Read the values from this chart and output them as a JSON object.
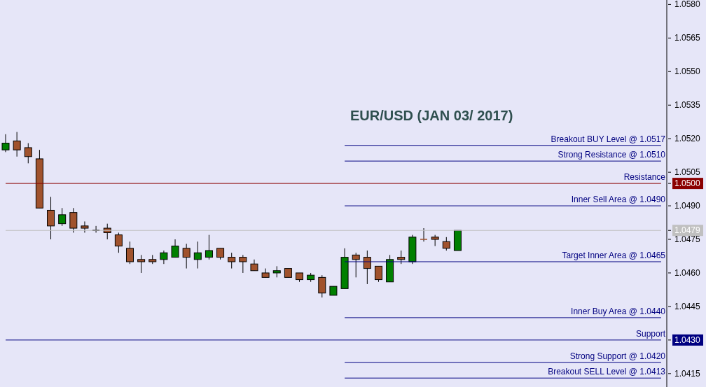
{
  "chart_data": {
    "type": "candlestick",
    "title": "EUR/USD (JAN 03/ 2017)",
    "categories": [
      null,
      null,
      null,
      null,
      null,
      null,
      null,
      null,
      null,
      null,
      null,
      null,
      null,
      null,
      null,
      null,
      null,
      null,
      null,
      null,
      null,
      null,
      null,
      null,
      null,
      null,
      null,
      null,
      null,
      null,
      null,
      null,
      null,
      null,
      null,
      null,
      null,
      null,
      null,
      null,
      null,
      null,
      null,
      null,
      null,
      null,
      null,
      null,
      null,
      null,
      null,
      null,
      null,
      null,
      null,
      null,
      null,
      null,
      null
    ],
    "ohlc": [
      [
        1.0515,
        1.0522,
        1.0514,
        1.0518
      ],
      [
        1.0519,
        1.0523,
        1.0512,
        1.0515
      ],
      [
        1.0516,
        1.0518,
        1.0509,
        1.0512
      ],
      [
        1.0511,
        1.0515,
        1.0489,
        1.0489
      ],
      [
        1.0488,
        1.0494,
        1.0475,
        1.0481
      ],
      [
        1.0482,
        1.0489,
        1.0481,
        1.0486
      ],
      [
        1.0487,
        1.0489,
        1.0478,
        1.048
      ],
      [
        1.0481,
        1.0483,
        1.0478,
        1.048
      ],
      [
        1.0479,
        1.0481,
        1.0478,
        1.0479
      ],
      [
        1.048,
        1.0482,
        1.0475,
        1.0478
      ],
      [
        1.0477,
        1.0478,
        1.0469,
        1.0472
      ],
      [
        1.0471,
        1.0474,
        1.0464,
        1.0465
      ],
      [
        1.0466,
        1.0468,
        1.046,
        1.0465
      ],
      [
        1.0466,
        1.0468,
        1.0464,
        1.0465
      ],
      [
        1.0466,
        1.047,
        1.0464,
        1.0469
      ],
      [
        1.0467,
        1.0475,
        1.0467,
        1.0472
      ],
      [
        1.0471,
        1.0473,
        1.0462,
        1.0467
      ],
      [
        1.0466,
        1.0474,
        1.0462,
        1.0469
      ],
      [
        1.0467,
        1.0477,
        1.0466,
        1.047
      ],
      [
        1.0471,
        1.0471,
        1.0466,
        1.0467
      ],
      [
        1.0467,
        1.0469,
        1.0462,
        1.0465
      ],
      [
        1.0467,
        1.0468,
        1.046,
        1.0465
      ],
      [
        1.0464,
        1.0466,
        1.0461,
        1.0461
      ],
      [
        1.046,
        1.0462,
        1.0458,
        1.0458
      ],
      [
        1.046,
        1.0463,
        1.0458,
        1.0461
      ],
      [
        1.0462,
        1.0462,
        1.0458,
        1.0458
      ],
      [
        1.046,
        1.046,
        1.0456,
        1.0457
      ],
      [
        1.0457,
        1.046,
        1.0456,
        1.0459
      ],
      [
        1.0458,
        1.0459,
        1.0449,
        1.0451
      ],
      [
        1.045,
        1.0454,
        1.045,
        1.0454
      ],
      [
        1.0453,
        1.0471,
        1.0453,
        1.0467
      ],
      [
        1.0468,
        1.0469,
        1.0458,
        1.0466
      ],
      [
        1.0467,
        1.047,
        1.0455,
        1.0462
      ],
      [
        1.0463,
        1.0463,
        1.0456,
        1.0457
      ],
      [
        1.0456,
        1.0468,
        1.0456,
        1.0466
      ],
      [
        1.0467,
        1.047,
        1.0464,
        1.0466
      ],
      [
        1.0465,
        1.0477,
        1.0464,
        1.0476
      ],
      [
        1.0475,
        1.048,
        1.0474,
        1.0475
      ],
      [
        1.0476,
        1.0477,
        1.0472,
        1.0475
      ],
      [
        1.0474,
        1.0476,
        1.047,
        1.0471
      ],
      [
        1.047,
        1.0479,
        1.047,
        1.0479
      ],
      null,
      null,
      null,
      null,
      null,
      null,
      null,
      null,
      null,
      null,
      null,
      null,
      null,
      null,
      null,
      null,
      null,
      null
    ],
    "colors": [
      "#008000",
      "#a0522d",
      "#a0522d",
      "#a0522d",
      "#a0522d",
      "#008000",
      "#a0522d",
      "#a0522d",
      "#000000",
      "#a0522d",
      "#a0522d",
      "#a0522d",
      "#a0522d",
      "#a0522d",
      "#008000",
      "#008000",
      "#a0522d",
      "#008000",
      "#008000",
      "#a0522d",
      "#a0522d",
      "#a0522d",
      "#a0522d",
      "#a0522d",
      "#008000",
      "#a0522d",
      "#a0522d",
      "#008000",
      "#a0522d",
      "#008000",
      "#008000",
      "#a0522d",
      "#a0522d",
      "#a0522d",
      "#008000",
      "#a0522d",
      "#008000",
      "#a0522d",
      "#a0522d",
      "#a0522d",
      "#008000",
      null,
      null,
      null,
      null,
      null,
      null,
      null,
      null,
      null,
      null,
      null,
      null,
      null,
      null,
      null,
      null,
      null,
      null
    ],
    "ylim": [
      1.0409,
      1.0582
    ],
    "yticks": [
      {
        "value": 1.0415,
        "label": "1.0415"
      },
      {
        "value": 1.043,
        "label": "1.0430"
      },
      {
        "value": 1.0445,
        "label": "1.0445"
      },
      {
        "value": 1.046,
        "label": "1.0460"
      },
      {
        "value": 1.0475,
        "label": "1.0475"
      },
      {
        "value": 1.0479,
        "label": "1.0479"
      },
      {
        "value": 1.049,
        "label": "1.0490"
      },
      {
        "value": 1.05,
        "label": "1.0500"
      },
      {
        "value": 1.0505,
        "label": "1.0505"
      },
      {
        "value": 1.052,
        "label": "1.0520"
      },
      {
        "value": 1.0535,
        "label": "1.0535"
      },
      {
        "value": 1.055,
        "label": "1.0550"
      },
      {
        "value": 1.0565,
        "label": "1.0565"
      },
      {
        "value": 1.058,
        "label": "1.0580"
      }
    ],
    "grid": false,
    "ref_lines": [
      {
        "axis": "y",
        "value": 1.0517,
        "label": "Breakout BUY Level @ 1.0517",
        "color": "#000080"
      },
      {
        "axis": "y",
        "value": 1.051,
        "label": "Strong Resistance @  1.0510",
        "color": "#000080"
      },
      {
        "axis": "y",
        "value": 1.05,
        "label": "Resistance",
        "color": "#8b0000"
      },
      {
        "axis": "y",
        "value": 1.049,
        "label": "Inner Sell Area @ 1.0490",
        "color": "#000080"
      },
      {
        "axis": "y",
        "value": 1.0479,
        "color": "#c0c0c0"
      },
      {
        "axis": "y",
        "value": 1.0465,
        "label": "Target Inner Area @ 1.0465",
        "color": "#000080"
      },
      {
        "axis": "y",
        "value": 1.044,
        "label": "Inner Buy Area  @ 1.0440",
        "color": "#000080"
      },
      {
        "axis": "y",
        "value": 1.043,
        "label": "Support",
        "color": "#000080"
      },
      {
        "axis": "y",
        "value": 1.042,
        "label": "Strong Support  @  1.0420",
        "color": "#000080"
      },
      {
        "axis": "y",
        "value": 1.0413,
        "label": "Breakout SELL Level  @ 1.0413",
        "color": "#000080"
      }
    ]
  }
}
